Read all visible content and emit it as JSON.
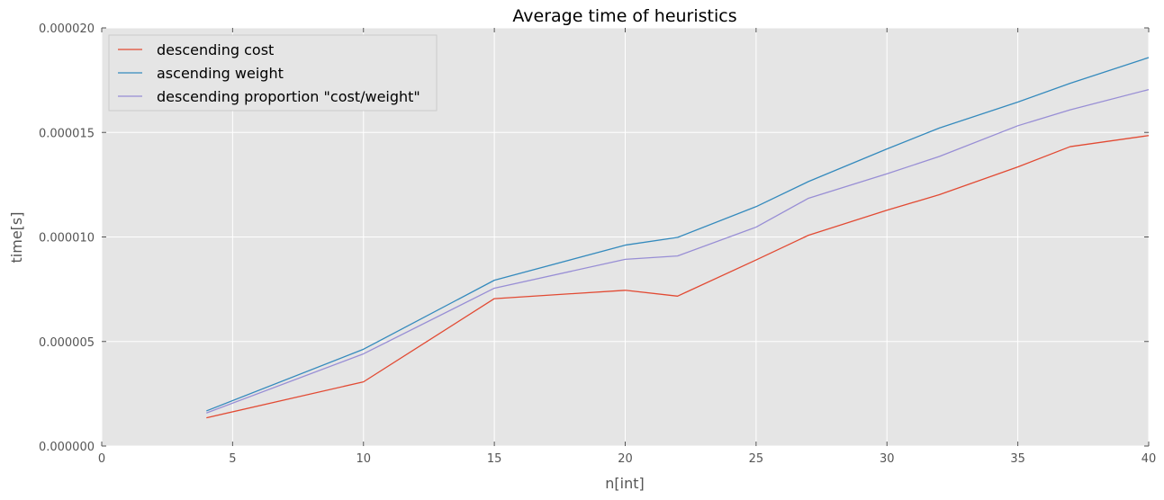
{
  "chart_data": {
    "type": "line",
    "title": "Average time of heuristics",
    "xlabel": "n[int]",
    "ylabel": "time[s]",
    "xlim": [
      0,
      40
    ],
    "ylim": [
      0,
      2e-05
    ],
    "xticks": [
      0,
      5,
      10,
      15,
      20,
      25,
      30,
      35,
      40
    ],
    "xtick_labels": [
      "0",
      "5",
      "10",
      "15",
      "20",
      "25",
      "30",
      "35",
      "40"
    ],
    "yticks": [
      0,
      5e-06,
      1e-05,
      1.5e-05,
      2e-05
    ],
    "ytick_labels": [
      "0.000000",
      "0.000005",
      "0.000010",
      "0.000015",
      "0.000020"
    ],
    "grid": true,
    "legend_position": "top-left",
    "x": [
      4,
      10,
      15,
      20,
      22,
      25,
      27,
      30,
      32,
      35,
      37,
      40
    ],
    "series": [
      {
        "name": "descending cost",
        "color": "#e24a33",
        "values": [
          1.35e-06,
          3.07e-06,
          7.05e-06,
          7.45e-06,
          7.17e-06,
          8.9e-06,
          1.008e-05,
          1.128e-05,
          1.202e-05,
          1.335e-05,
          1.432e-05,
          1.485e-05
        ]
      },
      {
        "name": "ascending weight",
        "color": "#348abd",
        "values": [
          1.68e-06,
          4.63e-06,
          7.93e-06,
          9.61e-06,
          9.98e-06,
          1.145e-05,
          1.265e-05,
          1.421e-05,
          1.521e-05,
          1.645e-05,
          1.735e-05,
          1.858e-05
        ]
      },
      {
        "name": "descending proportion \"cost/weight\"",
        "color": "#988ed5",
        "values": [
          1.58e-06,
          4.41e-06,
          7.55e-06,
          8.93e-06,
          9.09e-06,
          1.047e-05,
          1.185e-05,
          1.302e-05,
          1.385e-05,
          1.532e-05,
          1.608e-05,
          1.705e-05
        ]
      }
    ]
  },
  "theme": {
    "plot_background": "#e5e5e5",
    "grid_color": "#ffffff",
    "text_color": "#555555"
  }
}
